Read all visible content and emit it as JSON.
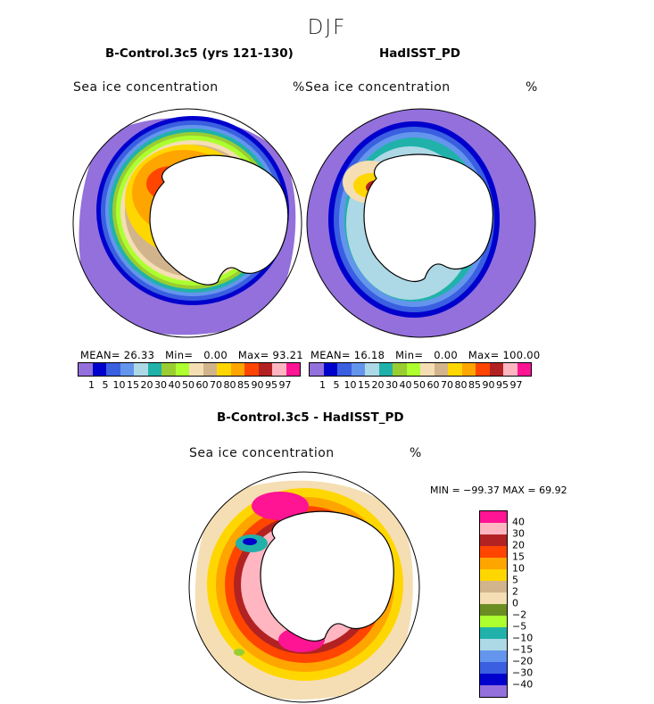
{
  "figure": {
    "season": "DJF",
    "panels": [
      {
        "title": "B-Control.3c5 (yrs 121-130)",
        "variable": "Sea ice concentration",
        "units": "%",
        "mean_label": "MEAN=",
        "mean": "26.33",
        "min_label": "Min=",
        "min": "0.00",
        "max_label": "Max=",
        "max": "93.21"
      },
      {
        "title": "HadISST_PD",
        "variable": "Sea ice concentration",
        "units": "%",
        "mean_label": "MEAN=",
        "mean": "16.18",
        "min_label": "Min=",
        "min": "0.00",
        "max_label": "Max=",
        "max": "100.00"
      }
    ],
    "diff_panel": {
      "title": "B-Control.3c5 - HadISST_PD",
      "variable": "Sea ice concentration",
      "units": "%",
      "minmax_text": "MIN =  −99.37  MAX =   69.92"
    }
  },
  "colorbar_abs": {
    "levels": [
      "1",
      "5",
      "10",
      "15",
      "20",
      "30",
      "40",
      "50",
      "60",
      "70",
      "80",
      "85",
      "90",
      "95",
      "97"
    ],
    "colors": [
      "#9370db",
      "#0000cd",
      "#3a5fe0",
      "#6495ed",
      "#add8e6",
      "#20b2aa",
      "#9acd32",
      "#adff2f",
      "#f5deb3",
      "#d2b48c",
      "#ffd700",
      "#ffa500",
      "#ff4500",
      "#b22222",
      "#ffb6c1",
      "#ff1493"
    ]
  },
  "colorbar_diff": {
    "levels": [
      "40",
      "30",
      "20",
      "15",
      "10",
      "5",
      "2",
      "0",
      "−2",
      "−5",
      "−10",
      "−15",
      "−20",
      "−30",
      "−40"
    ],
    "colors": [
      "#ff1493",
      "#ffb6c1",
      "#b22222",
      "#ff4500",
      "#ffa500",
      "#ffd700",
      "#d2b48c",
      "#f5deb3",
      "#6b8e23",
      "#adff2f",
      "#20b2aa",
      "#add8e6",
      "#6495ed",
      "#3a5fe0",
      "#0000cd",
      "#9370db"
    ]
  }
}
